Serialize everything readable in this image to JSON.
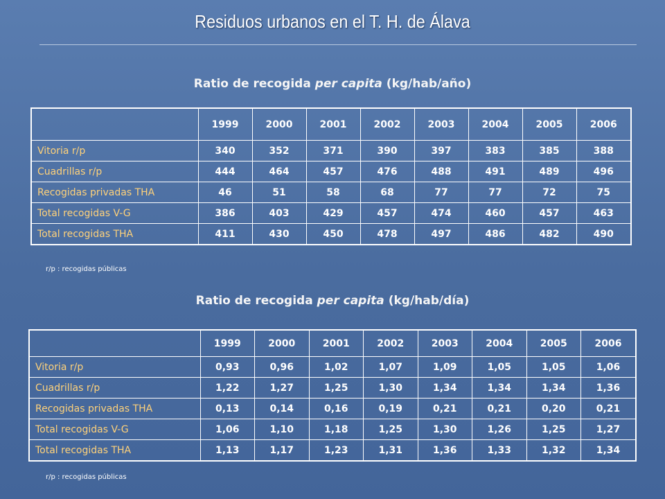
{
  "slide": {
    "title": "Residuos urbanos en el T. H. de Álava"
  },
  "section1": {
    "title_pre": "Ratio de recogida ",
    "title_em": "per capita",
    "title_post": " (kg/hab/año)",
    "columns": [
      "1999",
      "2000",
      "2001",
      "2002",
      "2003",
      "2004",
      "2005",
      "2006"
    ],
    "rows": [
      {
        "label": "Vitoria r/p",
        "values": [
          "340",
          "352",
          "371",
          "390",
          "397",
          "383",
          "385",
          "388"
        ]
      },
      {
        "label": "Cuadrillas r/p",
        "values": [
          "444",
          "464",
          "457",
          "476",
          "488",
          "491",
          "489",
          "496"
        ]
      },
      {
        "label": "Recogidas privadas THA",
        "values": [
          "46",
          "51",
          "58",
          "68",
          "77",
          "77",
          "72",
          "75"
        ]
      },
      {
        "label": "Total recogidas V-G",
        "values": [
          "386",
          "403",
          "429",
          "457",
          "474",
          "460",
          "457",
          "463"
        ]
      },
      {
        "label": "Total recogidas THA",
        "values": [
          "411",
          "430",
          "450",
          "478",
          "497",
          "486",
          "482",
          "490"
        ]
      }
    ],
    "note": "r/p : recogidas públicas"
  },
  "section2": {
    "title_pre": "Ratio de recogida ",
    "title_em": "per capita",
    "title_post": " (kg/hab/día)",
    "columns": [
      "1999",
      "2000",
      "2001",
      "2002",
      "2003",
      "2004",
      "2005",
      "2006"
    ],
    "rows": [
      {
        "label": "Vitoria r/p",
        "values": [
          "0,93",
          "0,96",
          "1,02",
          "1,07",
          "1,09",
          "1,05",
          "1,05",
          "1,06"
        ]
      },
      {
        "label": "Cuadrillas r/p",
        "values": [
          "1,22",
          "1,27",
          "1,25",
          "1,30",
          "1,34",
          "1,34",
          "1,34",
          "1,36"
        ]
      },
      {
        "label": "Recogidas privadas THA",
        "values": [
          "0,13",
          "0,14",
          "0,16",
          "0,19",
          "0,21",
          "0,21",
          "0,20",
          "0,21"
        ]
      },
      {
        "label": "Total recogidas V-G",
        "values": [
          "1,06",
          "1,10",
          "1,18",
          "1,25",
          "1,30",
          "1,26",
          "1,25",
          "1,27"
        ]
      },
      {
        "label": "Total recogidas THA",
        "values": [
          "1,13",
          "1,17",
          "1,23",
          "1,31",
          "1,36",
          "1,33",
          "1,32",
          "1,34"
        ]
      }
    ],
    "note": "r/p : recogidas públicas"
  }
}
